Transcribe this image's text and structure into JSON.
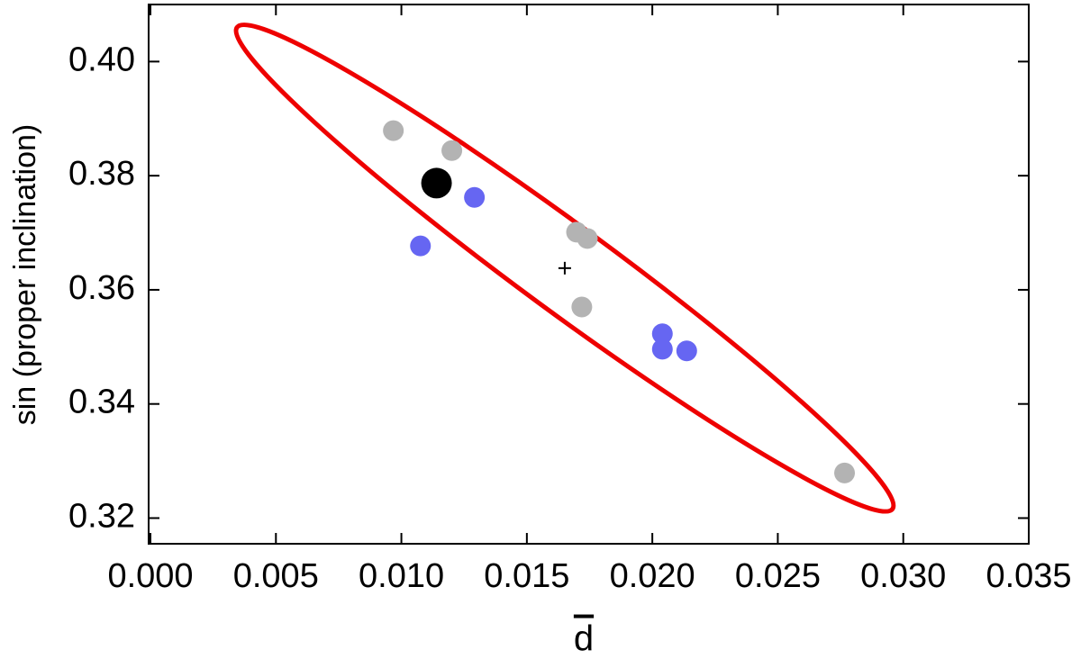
{
  "chart_data": {
    "type": "scatter",
    "x_label": "d",
    "y_label": "sin (proper inclination)",
    "xlim": [
      0,
      0.035
    ],
    "ylim": [
      0.3155,
      0.41
    ],
    "xticks": [
      {
        "value": 0,
        "label": "0.000"
      },
      {
        "value": 0.005,
        "label": "0.005"
      },
      {
        "value": 0.01,
        "label": "0.010"
      },
      {
        "value": 0.015,
        "label": "0.015"
      },
      {
        "value": 0.02,
        "label": "0.020"
      },
      {
        "value": 0.025,
        "label": "0.025"
      },
      {
        "value": 0.03,
        "label": "0.030"
      },
      {
        "value": 0.035,
        "label": "0.035"
      }
    ],
    "yticks": [
      {
        "value": 0.32,
        "label": "0.32"
      },
      {
        "value": 0.34,
        "label": "0.34"
      },
      {
        "value": 0.36,
        "label": "0.36"
      },
      {
        "value": 0.38,
        "label": "0.38"
      },
      {
        "value": 0.4,
        "label": "0.40"
      }
    ],
    "series": [
      {
        "color": "#b3b3b3",
        "marker": "dot",
        "x": [
          0.00968,
          0.01201,
          0.01698,
          0.01741,
          0.01719,
          0.02766
        ],
        "values": [
          0.3879,
          0.3844,
          0.3701,
          0.369,
          0.357,
          0.3279
        ]
      },
      {
        "color": "#6666f2",
        "marker": "dot",
        "x": [
          0.01291,
          0.01076,
          0.0204,
          0.0204,
          0.02137
        ],
        "values": [
          0.3762,
          0.3677,
          0.3523,
          0.3496,
          0.3493
        ]
      },
      {
        "color": "#000000",
        "marker": "big-dot",
        "x": [
          0.0114
        ],
        "values": [
          0.3787
        ]
      },
      {
        "color": "#000000",
        "marker": "plus",
        "x": [
          0.01651
        ],
        "values": [
          0.3638
        ]
      }
    ],
    "ellipse": {
      "color": "#ee0000",
      "center": [
        0.01651,
        0.3638
      ],
      "major_end": [
        0.02957,
        0.3216
      ],
      "minor_end": [
        0.01748,
        0.3575
      ]
    }
  }
}
